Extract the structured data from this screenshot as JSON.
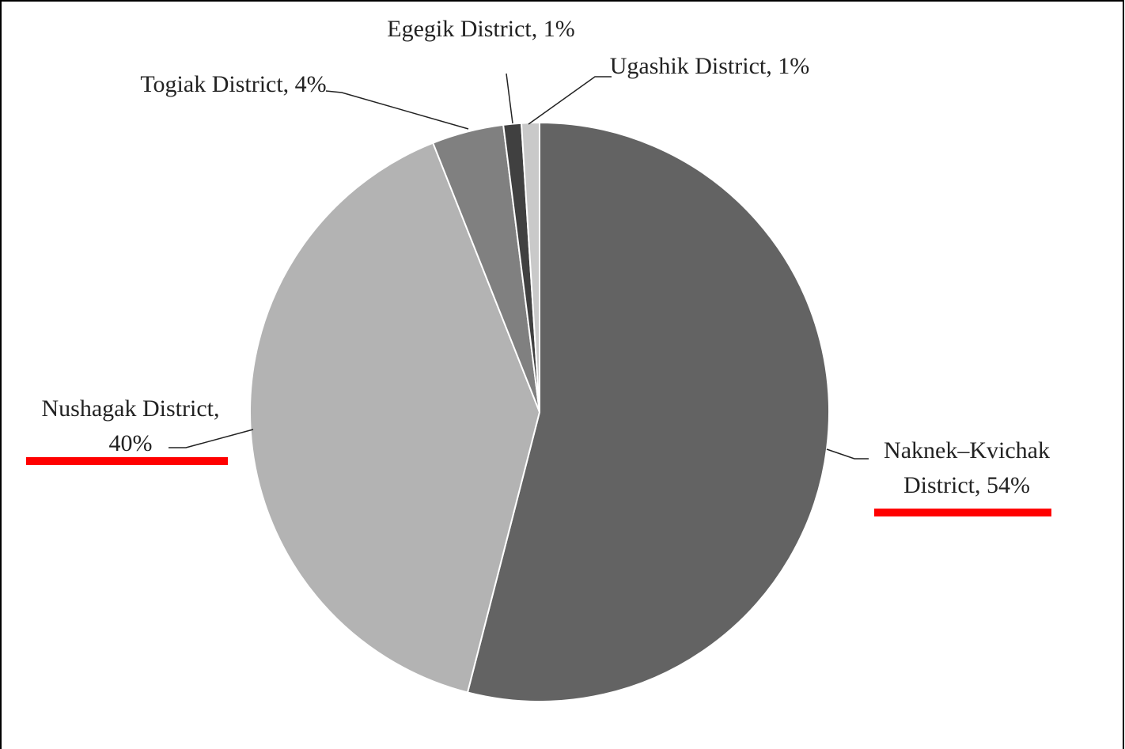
{
  "chart_data": {
    "type": "pie",
    "values": [
      54,
      40,
      4,
      1,
      1
    ],
    "value_labels": [
      "Naknek–Kvichak District, 54%",
      "Nushagak District, 40%",
      "Togiak District, 4%",
      "Egegik District, 1%",
      "Ugashik District, 1%"
    ],
    "colors": [
      "#636363",
      "#b3b3b3",
      "#808080",
      "#404040",
      "#c9c9c9"
    ]
  }
}
